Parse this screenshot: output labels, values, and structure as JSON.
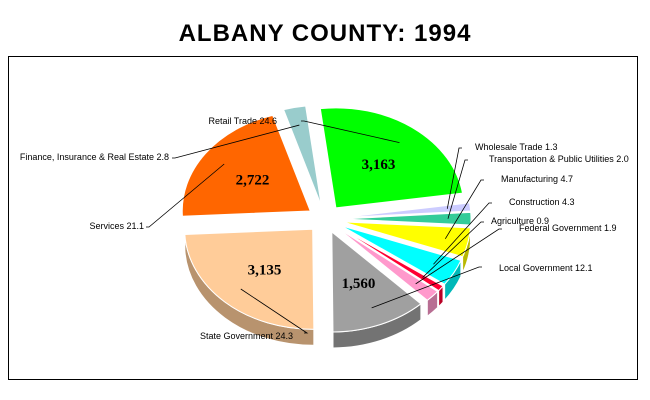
{
  "chart_data": {
    "type": "pie",
    "title": "ALBANY COUNTY:  1994",
    "unit": "%",
    "slices": [
      {
        "label": "Retail Trade",
        "value": 24.6,
        "value_text": "24.6",
        "data_label": "3,163",
        "color": "#00ff00"
      },
      {
        "label": "Wholesale Trade",
        "value": 1.3,
        "value_text": "1.3",
        "data_label": "",
        "color": "#ccccff"
      },
      {
        "label": "Transportation & Public Utilities",
        "value": 2.0,
        "value_text": "2.0",
        "data_label": "",
        "color": "#33cc99"
      },
      {
        "label": "Manufacturing",
        "value": 4.7,
        "value_text": "4.7",
        "data_label": "",
        "color": "#ffff00"
      },
      {
        "label": "Construction",
        "value": 4.3,
        "value_text": "4.3",
        "data_label": "",
        "color": "#00ffff"
      },
      {
        "label": "Agriculture",
        "value": 0.9,
        "value_text": "0.9",
        "data_label": "",
        "color": "#ff0033"
      },
      {
        "label": "Federal Government",
        "value": 1.9,
        "value_text": "1.9",
        "data_label": "",
        "color": "#ff99cc"
      },
      {
        "label": "Local Government",
        "value": 12.1,
        "value_text": "12.1",
        "data_label": "1,560",
        "color": "#a0a0a0"
      },
      {
        "label": "State Government",
        "value": 24.3,
        "value_text": "24.3",
        "data_label": "3,135",
        "color": "#ffcc99"
      },
      {
        "label": "Services",
        "value": 21.1,
        "value_text": "21.1",
        "data_label": "2,722",
        "color": "#ff6600"
      },
      {
        "label": "Finance, Insurance & Real Estate",
        "value": 2.8,
        "value_text": "2.8",
        "data_label": "",
        "color": "#99cccc"
      }
    ]
  }
}
